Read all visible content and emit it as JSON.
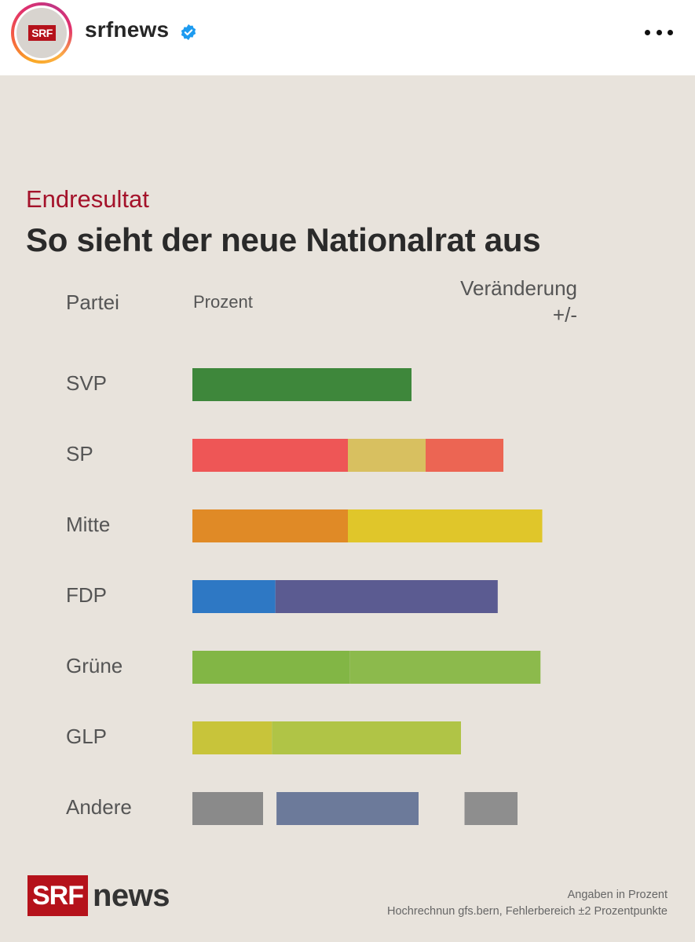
{
  "header": {
    "username": "srfnews",
    "avatar_logo": "SRF",
    "verified": true,
    "more_icon": "more-options-icon"
  },
  "post": {
    "kicker": "Endresultat",
    "title": "So sieht der neue Nationalrat aus",
    "columns": {
      "party": "Partei",
      "percent": "Prozent",
      "change_line1": "Veränderung",
      "change_line2": "+/-"
    },
    "footer": {
      "logo_srf": "SRF",
      "logo_news": "news",
      "note1": "Angaben in Prozent",
      "note2": "Hochrechnun gfs.bern, Fehlerbereich ±2 Prozentpunkte"
    }
  },
  "chart_data": {
    "type": "bar",
    "orientation": "horizontal",
    "stacked": true,
    "title": "So sieht der neue Nationalrat aus",
    "subtitle": "Endresultat",
    "xlabel": "Prozent",
    "ylabel": "Partei",
    "units": "relative width (approx., no numeric labels shown)",
    "xlim": [
      0,
      100
    ],
    "categories": [
      "SVP",
      "SP",
      "Mitte",
      "FDP",
      "Grüne",
      "GLP",
      "Andere"
    ],
    "bars": [
      {
        "party": "SVP",
        "segments": [
          {
            "start": 0,
            "end": 62,
            "color": "#3e873b"
          }
        ]
      },
      {
        "party": "SP",
        "segments": [
          {
            "start": 0,
            "end": 44,
            "color": "#ee5656"
          },
          {
            "start": 44,
            "end": 66,
            "color": "#d8c060",
            "note": "visual artifact"
          },
          {
            "start": 66,
            "end": 88,
            "color": "#ec6553"
          }
        ]
      },
      {
        "party": "Mitte",
        "segments": [
          {
            "start": 0,
            "end": 44,
            "color": "#e08a26"
          },
          {
            "start": 44,
            "end": 99,
            "color": "#e0c62a"
          }
        ]
      },
      {
        "party": "FDP",
        "segments": [
          {
            "start": 0,
            "end": 23.5,
            "color": "#2e78c4"
          },
          {
            "start": 23.5,
            "end": 86.4,
            "color": "#5b5b91"
          }
        ]
      },
      {
        "party": "Grüne",
        "segments": [
          {
            "start": 0,
            "end": 44.5,
            "color": "#82b645"
          },
          {
            "start": 44.5,
            "end": 98.5,
            "color": "#8cba4c"
          }
        ]
      },
      {
        "party": "GLP",
        "segments": [
          {
            "start": 0,
            "end": 22.5,
            "color": "#c8c43a"
          },
          {
            "start": 22.5,
            "end": 76,
            "color": "#b0c446"
          }
        ]
      },
      {
        "party": "Andere",
        "segments": [
          {
            "start": 0,
            "end": 20,
            "color": "#8a8a8a"
          },
          {
            "start": 23.8,
            "end": 64,
            "color": "#6c7a9a"
          },
          {
            "start": 77,
            "end": 92,
            "color": "#8e8e8e"
          }
        ]
      }
    ],
    "grid": false,
    "legend": "none"
  }
}
